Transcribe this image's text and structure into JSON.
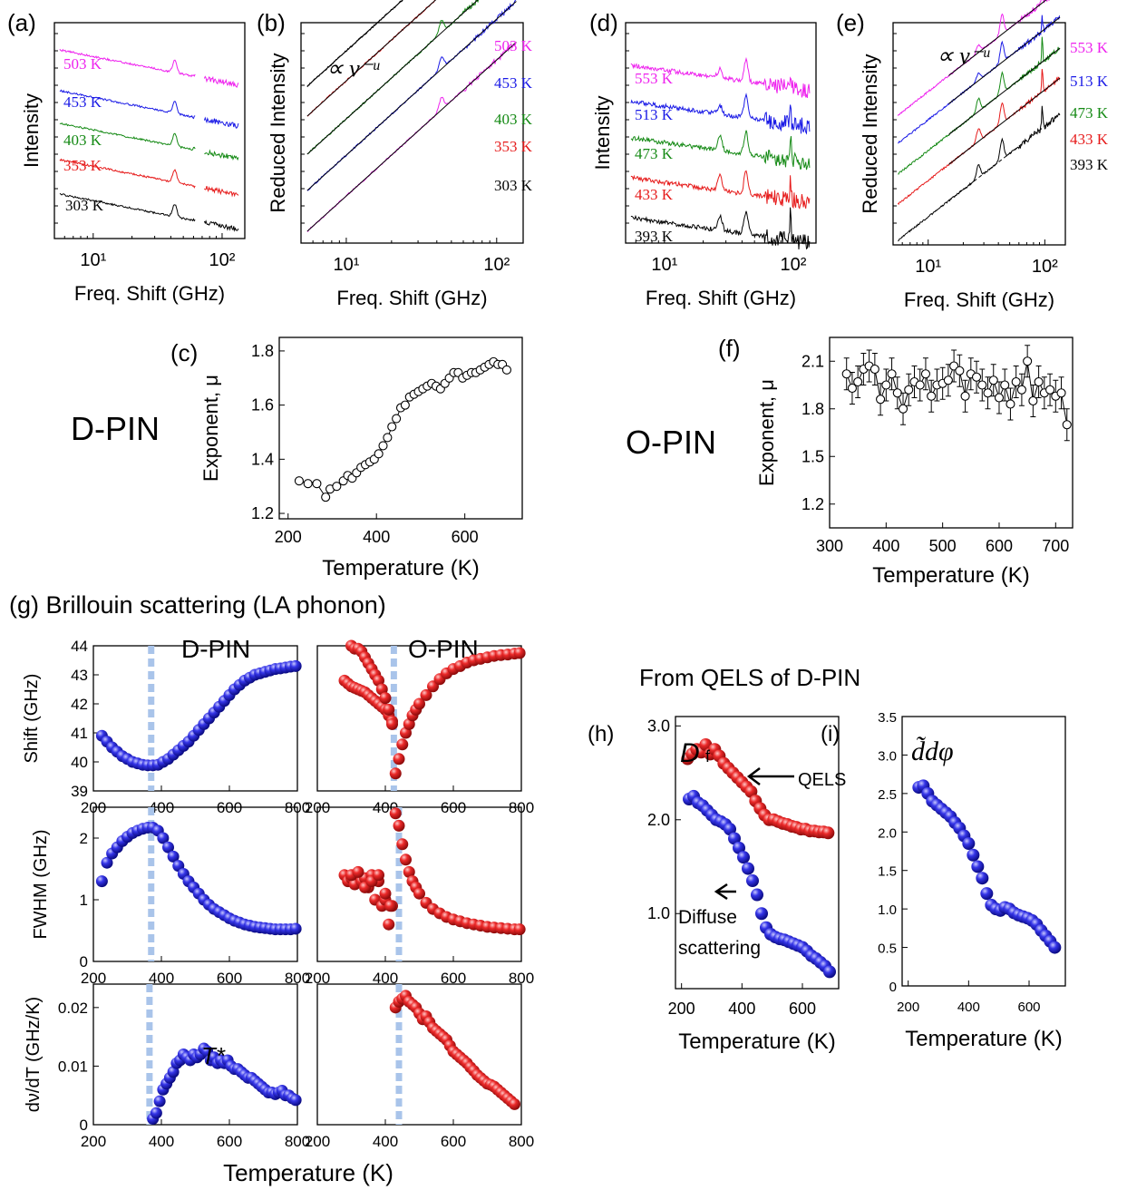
{
  "figure": {
    "panel_a": "(a)",
    "panel_b": "(b)",
    "panel_c": "(c)",
    "panel_d": "(d)",
    "panel_e": "(e)",
    "panel_f": "(f)",
    "panel_g": "(g)",
    "panel_h": "(h)",
    "panel_i": "(i)",
    "dpin": "D-PIN",
    "opin": "O-PIN",
    "g_title": "Brillouin scattering (LA phonon)",
    "qels_title": "From QELS of D-PIN",
    "powerlaw": "∝ ν⁻ᵘ",
    "tstar": "T*",
    "qels_label": "QELS",
    "diffuse_1": "Diffuse",
    "diffuse_2": "scattering",
    "h_var": "D",
    "h_sub": "f",
    "i_var": "d̃dφ"
  },
  "colors": {
    "magenta": "#ee22ee",
    "blue": "#1a1ae6",
    "green": "#158a15",
    "red": "#e61a1a",
    "black": "#000000",
    "sphere_blue": "#2a2ae0",
    "sphere_red": "#e82020",
    "dash": "#a9c4ea"
  },
  "chart_data": [
    {
      "id": "a",
      "type": "line",
      "xlabel": "Freq. Shift (GHz)",
      "ylabel": "Intensity",
      "xscale": "log",
      "xlim": [
        5,
        150
      ],
      "xticks": [
        "10¹",
        "10²"
      ],
      "series": [
        {
          "name": "503 K",
          "color": "magenta"
        },
        {
          "name": "453 K",
          "color": "blue"
        },
        {
          "name": "403 K",
          "color": "green"
        },
        {
          "name": "353 K",
          "color": "red"
        },
        {
          "name": "303 K",
          "color": "black"
        }
      ],
      "peak_ghz": 43
    },
    {
      "id": "b",
      "type": "line",
      "xlabel": "Freq. Shift (GHz)",
      "ylabel": "Reduced Intensity",
      "xscale": "log",
      "xlim": [
        5,
        150
      ],
      "xticks": [
        "10¹",
        "10²"
      ],
      "series": [
        {
          "name": "503 K",
          "color": "magenta"
        },
        {
          "name": "453 K",
          "color": "blue"
        },
        {
          "name": "403 K",
          "color": "green"
        },
        {
          "name": "353 K",
          "color": "red"
        },
        {
          "name": "303 K",
          "color": "black"
        }
      ]
    },
    {
      "id": "c",
      "type": "scatter",
      "xlabel": "Temperature (K)",
      "ylabel": "Exponent, μ",
      "xlim": [
        180,
        730
      ],
      "ylim": [
        1.18,
        1.85
      ],
      "xticks": [
        "200",
        "400",
        "600"
      ],
      "yticks": [
        "1.2",
        "1.4",
        "1.6",
        "1.8"
      ],
      "x": [
        225,
        245,
        265,
        285,
        295,
        310,
        325,
        335,
        345,
        355,
        365,
        375,
        385,
        395,
        405,
        415,
        425,
        435,
        445,
        455,
        465,
        475,
        485,
        495,
        505,
        515,
        525,
        535,
        545,
        555,
        565,
        575,
        585,
        595,
        605,
        615,
        625,
        635,
        645,
        655,
        665,
        675,
        685,
        695
      ],
      "y": [
        1.32,
        1.31,
        1.31,
        1.26,
        1.29,
        1.3,
        1.32,
        1.34,
        1.33,
        1.35,
        1.37,
        1.38,
        1.39,
        1.4,
        1.42,
        1.45,
        1.48,
        1.52,
        1.55,
        1.59,
        1.6,
        1.63,
        1.64,
        1.65,
        1.66,
        1.67,
        1.68,
        1.67,
        1.66,
        1.68,
        1.7,
        1.72,
        1.72,
        1.7,
        1.71,
        1.72,
        1.72,
        1.73,
        1.74,
        1.75,
        1.76,
        1.75,
        1.75,
        1.73
      ]
    },
    {
      "id": "d",
      "type": "line",
      "xlabel": "Freq. Shift (GHz)",
      "ylabel": "Intensity",
      "xscale": "log",
      "xlim": [
        5,
        150
      ],
      "xticks": [
        "10¹",
        "10²"
      ],
      "series": [
        {
          "name": "553 K",
          "color": "magenta"
        },
        {
          "name": "513 K",
          "color": "blue"
        },
        {
          "name": "473 K",
          "color": "green"
        },
        {
          "name": "433 K",
          "color": "red"
        },
        {
          "name": "393 K",
          "color": "black"
        }
      ]
    },
    {
      "id": "e",
      "type": "line",
      "xlabel": "Freq. Shift (GHz)",
      "ylabel": "Reduced Intensity",
      "xscale": "log",
      "xlim": [
        5,
        150
      ],
      "xticks": [
        "10¹",
        "10²"
      ],
      "series": [
        {
          "name": "553 K",
          "color": "magenta"
        },
        {
          "name": "513 K",
          "color": "blue"
        },
        {
          "name": "473 K",
          "color": "green"
        },
        {
          "name": "433 K",
          "color": "red"
        },
        {
          "name": "393 K",
          "color": "black"
        }
      ]
    },
    {
      "id": "f",
      "type": "scatter",
      "xlabel": "Temperature (K)",
      "ylabel": "Exponent, μ",
      "xlim": [
        300,
        730
      ],
      "ylim": [
        1.05,
        2.25
      ],
      "xticks": [
        "300",
        "400",
        "500",
        "600",
        "700"
      ],
      "yticks": [
        "1.2",
        "1.5",
        "1.8",
        "2.1"
      ],
      "x": [
        330,
        340,
        350,
        360,
        370,
        380,
        390,
        400,
        410,
        420,
        430,
        440,
        450,
        460,
        470,
        480,
        490,
        500,
        510,
        520,
        530,
        540,
        550,
        560,
        570,
        580,
        590,
        600,
        610,
        620,
        630,
        640,
        650,
        660,
        670,
        680,
        690,
        700,
        710,
        720
      ],
      "y": [
        2.02,
        1.93,
        1.97,
        2.05,
        2.07,
        2.05,
        1.86,
        1.95,
        2.02,
        1.9,
        1.8,
        1.92,
        1.97,
        1.95,
        2.02,
        1.88,
        1.95,
        1.96,
        1.98,
        2.07,
        2.04,
        1.88,
        2.02,
        2.0,
        1.95,
        1.9,
        1.98,
        1.87,
        1.95,
        1.83,
        1.97,
        1.92,
        2.1,
        1.85,
        1.97,
        1.9,
        1.92,
        1.88,
        1.9,
        1.7
      ],
      "err": 0.1
    },
    {
      "id": "g_shift_d",
      "type": "scatter",
      "ylabel": "Shift (GHz)",
      "xlim": [
        200,
        800
      ],
      "ylim": [
        39,
        44
      ],
      "xticks": [
        "200",
        "400",
        "600",
        "800"
      ],
      "yticks": [
        "39",
        "40",
        "41",
        "42",
        "43",
        "44"
      ],
      "x": [
        225,
        240,
        255,
        270,
        285,
        300,
        315,
        330,
        345,
        360,
        375,
        390,
        405,
        420,
        435,
        450,
        465,
        480,
        495,
        510,
        525,
        540,
        555,
        570,
        585,
        600,
        615,
        630,
        645,
        660,
        675,
        690,
        705,
        720,
        735,
        750,
        765,
        780,
        795
      ],
      "y": [
        40.9,
        40.7,
        40.5,
        40.35,
        40.2,
        40.1,
        40.0,
        39.95,
        39.9,
        39.88,
        39.88,
        39.9,
        40.0,
        40.1,
        40.25,
        40.4,
        40.55,
        40.7,
        40.9,
        41.1,
        41.3,
        41.5,
        41.7,
        41.9,
        42.1,
        42.3,
        42.5,
        42.65,
        42.8,
        42.9,
        43.0,
        43.05,
        43.1,
        43.15,
        43.2,
        43.22,
        43.25,
        43.28,
        43.3
      ]
    },
    {
      "id": "g_shift_o",
      "type": "scatter",
      "xlim": [
        200,
        800
      ],
      "ylim": [
        39,
        44
      ],
      "xticks": [
        "200",
        "400",
        "600",
        "800"
      ],
      "x": [
        280,
        290,
        300,
        310,
        320,
        330,
        340,
        350,
        360,
        370,
        380,
        390,
        400,
        410,
        420,
        300,
        310,
        320,
        330,
        340,
        350,
        360,
        370,
        380,
        390,
        400,
        410,
        420,
        430,
        440,
        450,
        460,
        470,
        480,
        490,
        500,
        520,
        540,
        560,
        580,
        600,
        620,
        640,
        660,
        680,
        700,
        720,
        740,
        760,
        780,
        795
      ],
      "y": [
        42.8,
        42.7,
        42.6,
        42.55,
        42.5,
        42.45,
        42.4,
        42.3,
        42.2,
        42.1,
        42.0,
        41.9,
        41.8,
        41.6,
        41.4,
        44.0,
        43.9,
        43.9,
        43.8,
        43.6,
        43.4,
        43.2,
        43.0,
        42.8,
        42.5,
        42.2,
        41.8,
        41.3,
        39.6,
        40.1,
        40.6,
        41.0,
        41.3,
        41.6,
        41.8,
        42.0,
        42.3,
        42.6,
        42.85,
        43.05,
        43.2,
        43.3,
        43.42,
        43.5,
        43.55,
        43.6,
        43.65,
        43.68,
        43.7,
        43.73,
        43.75
      ]
    },
    {
      "id": "g_fwhm_d",
      "type": "scatter",
      "ylabel": "FWHM (GHz)",
      "xlim": [
        200,
        800
      ],
      "ylim": [
        0,
        2.5
      ],
      "xticks": [
        "200",
        "400",
        "600",
        "800"
      ],
      "yticks": [
        "0",
        "1",
        "2"
      ],
      "x": [
        225,
        240,
        255,
        270,
        285,
        300,
        315,
        330,
        345,
        360,
        375,
        390,
        405,
        420,
        435,
        450,
        465,
        480,
        495,
        510,
        525,
        540,
        555,
        570,
        585,
        600,
        615,
        630,
        645,
        660,
        675,
        690,
        705,
        720,
        735,
        750,
        765,
        780,
        795
      ],
      "y": [
        1.3,
        1.6,
        1.75,
        1.85,
        1.95,
        2.02,
        2.08,
        2.12,
        2.15,
        2.17,
        2.17,
        2.12,
        2.0,
        1.85,
        1.7,
        1.55,
        1.42,
        1.3,
        1.2,
        1.1,
        1.0,
        0.92,
        0.85,
        0.8,
        0.75,
        0.7,
        0.66,
        0.63,
        0.6,
        0.58,
        0.56,
        0.55,
        0.54,
        0.53,
        0.52,
        0.52,
        0.52,
        0.52,
        0.53
      ]
    },
    {
      "id": "g_fwhm_o",
      "type": "scatter",
      "xlim": [
        200,
        800
      ],
      "ylim": [
        0,
        2.5
      ],
      "xticks": [
        "200",
        "400",
        "600",
        "800"
      ],
      "x": [
        280,
        290,
        300,
        310,
        320,
        330,
        340,
        350,
        360,
        370,
        380,
        390,
        400,
        410,
        420,
        300,
        320,
        340,
        360,
        380,
        400,
        415,
        430,
        440,
        450,
        460,
        470,
        480,
        490,
        500,
        520,
        540,
        560,
        580,
        600,
        620,
        640,
        660,
        680,
        700,
        720,
        740,
        760,
        780,
        795
      ],
      "y": [
        1.4,
        1.3,
        1.35,
        1.25,
        1.4,
        1.3,
        1.35,
        1.2,
        1.4,
        1.0,
        1.3,
        0.9,
        1.0,
        0.6,
        0.9,
        1.4,
        1.45,
        1.2,
        1.3,
        1.4,
        1.1,
        0.9,
        2.4,
        2.2,
        1.9,
        1.65,
        1.45,
        1.3,
        1.2,
        1.1,
        0.95,
        0.85,
        0.78,
        0.72,
        0.68,
        0.65,
        0.62,
        0.6,
        0.58,
        0.56,
        0.55,
        0.54,
        0.53,
        0.52,
        0.52
      ]
    },
    {
      "id": "g_dvdt_d",
      "type": "scatter",
      "ylabel": "dν/dT (GHz/K)",
      "xlim": [
        200,
        800
      ],
      "ylim": [
        0,
        0.024
      ],
      "xticks": [
        "200",
        "400",
        "600",
        "800"
      ],
      "yticks": [
        "0",
        "0.01",
        "0.02"
      ],
      "x": [
        375,
        385,
        395,
        405,
        415,
        425,
        435,
        445,
        455,
        465,
        475,
        485,
        495,
        505,
        515,
        525,
        535,
        545,
        555,
        565,
        575,
        585,
        595,
        605,
        615,
        625,
        635,
        645,
        655,
        665,
        675,
        685,
        695,
        705,
        715,
        725,
        735,
        745,
        755,
        765,
        775,
        785,
        795
      ],
      "y": [
        0.001,
        0.002,
        0.004,
        0.006,
        0.007,
        0.008,
        0.009,
        0.0105,
        0.011,
        0.012,
        0.0115,
        0.011,
        0.012,
        0.0115,
        0.012,
        0.013,
        0.0125,
        0.011,
        0.0115,
        0.0105,
        0.011,
        0.0105,
        0.011,
        0.01,
        0.0095,
        0.0095,
        0.009,
        0.0085,
        0.008,
        0.008,
        0.0075,
        0.007,
        0.0065,
        0.006,
        0.0055,
        0.0055,
        0.0052,
        0.0055,
        0.0058,
        0.005,
        0.005,
        0.0045,
        0.0042
      ]
    },
    {
      "id": "g_dvdt_o",
      "type": "scatter",
      "xlim": [
        200,
        800
      ],
      "ylim": [
        0,
        0.024
      ],
      "xticks": [
        "200",
        "400",
        "600",
        "800"
      ],
      "x": [
        430,
        440,
        450,
        460,
        470,
        480,
        490,
        500,
        510,
        520,
        530,
        540,
        550,
        560,
        570,
        580,
        590,
        600,
        610,
        620,
        630,
        640,
        650,
        660,
        670,
        680,
        690,
        700,
        710,
        720,
        730,
        740,
        750,
        760,
        770,
        780
      ],
      "y": [
        0.02,
        0.021,
        0.0215,
        0.022,
        0.021,
        0.0205,
        0.02,
        0.019,
        0.018,
        0.0185,
        0.0175,
        0.0165,
        0.016,
        0.0155,
        0.015,
        0.0145,
        0.0135,
        0.0125,
        0.012,
        0.0115,
        0.011,
        0.0105,
        0.0098,
        0.0092,
        0.0085,
        0.008,
        0.0075,
        0.007,
        0.0068,
        0.0065,
        0.006,
        0.0055,
        0.005,
        0.0045,
        0.004,
        0.0035
      ]
    },
    {
      "id": "h",
      "type": "scatter",
      "xlabel": "Temperature (K)",
      "xlim": [
        180,
        720
      ],
      "ylim": [
        0.2,
        3.1
      ],
      "xticks": [
        "200",
        "400",
        "600"
      ],
      "yticks": [
        "1.0",
        "2.0",
        "3.0"
      ],
      "series": [
        {
          "name": "QELS",
          "color": "sphere_red",
          "x": [
            220,
            235,
            250,
            265,
            280,
            295,
            310,
            325,
            340,
            355,
            370,
            385,
            400,
            415,
            430,
            445,
            460,
            475,
            490,
            505,
            520,
            535,
            550,
            565,
            580,
            595,
            610,
            625,
            640,
            655,
            670,
            685
          ],
          "y": [
            2.65,
            2.7,
            2.75,
            2.72,
            2.8,
            2.7,
            2.75,
            2.68,
            2.6,
            2.55,
            2.5,
            2.45,
            2.4,
            2.35,
            2.3,
            2.2,
            2.12,
            2.05,
            2.0,
            2.0,
            1.98,
            1.96,
            1.95,
            1.93,
            1.92,
            1.9,
            1.9,
            1.88,
            1.88,
            1.87,
            1.87,
            1.86
          ]
        },
        {
          "name": "Diffuse scattering",
          "color": "sphere_blue",
          "x": [
            225,
            240,
            255,
            270,
            285,
            300,
            315,
            330,
            345,
            360,
            375,
            390,
            405,
            420,
            435,
            450,
            465,
            480,
            495,
            510,
            525,
            540,
            555,
            570,
            585,
            600,
            615,
            630,
            645,
            660,
            675,
            690
          ],
          "y": [
            2.22,
            2.25,
            2.18,
            2.15,
            2.1,
            2.05,
            2.0,
            1.98,
            1.95,
            1.9,
            1.8,
            1.7,
            1.6,
            1.48,
            1.35,
            1.2,
            1.0,
            0.85,
            0.78,
            0.75,
            0.73,
            0.72,
            0.7,
            0.68,
            0.66,
            0.64,
            0.6,
            0.55,
            0.52,
            0.48,
            0.44,
            0.38
          ]
        }
      ]
    },
    {
      "id": "i",
      "type": "scatter",
      "xlabel": "Temperature (K)",
      "xlim": [
        180,
        720
      ],
      "ylim": [
        0,
        3.5
      ],
      "xticks": [
        "200",
        "400",
        "600"
      ],
      "yticks": [
        "0",
        "0.5",
        "1.0",
        "1.5",
        "2.0",
        "2.5",
        "3.0",
        "3.5"
      ],
      "x": [
        235,
        250,
        265,
        280,
        295,
        310,
        325,
        340,
        355,
        370,
        385,
        400,
        415,
        430,
        445,
        460,
        475,
        490,
        505,
        520,
        535,
        550,
        565,
        580,
        595,
        610,
        625,
        640,
        655,
        670,
        685
      ],
      "y": [
        2.58,
        2.6,
        2.5,
        2.4,
        2.35,
        2.3,
        2.25,
        2.2,
        2.12,
        2.05,
        1.95,
        1.85,
        1.7,
        1.55,
        1.4,
        1.2,
        1.05,
        1.0,
        0.98,
        1.02,
        1.0,
        0.95,
        0.92,
        0.9,
        0.88,
        0.85,
        0.8,
        0.72,
        0.65,
        0.58,
        0.5
      ]
    }
  ]
}
